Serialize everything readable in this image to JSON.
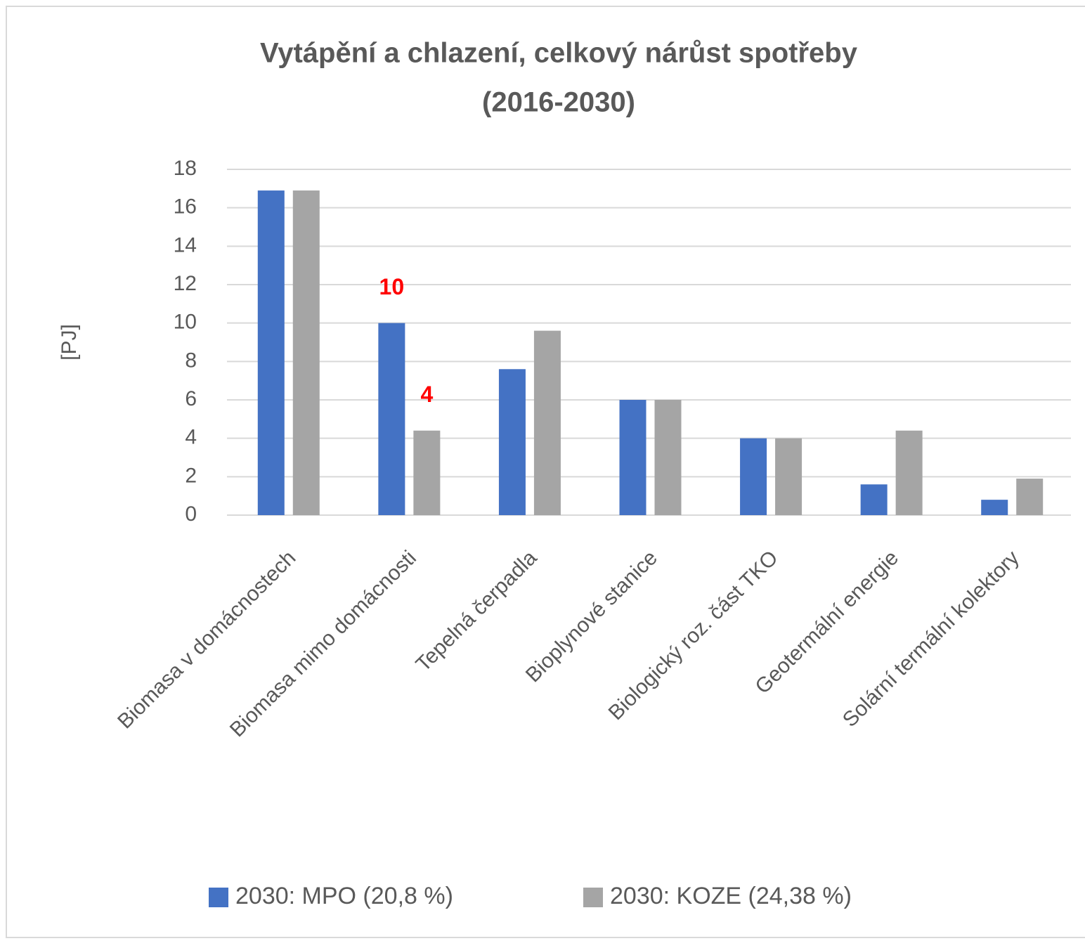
{
  "chart_data": {
    "type": "bar",
    "title": "Vytápění a chlazení, celkový nárůst spotřeby",
    "subtitle": "(2016-2030)",
    "y_label": "[PJ]",
    "categories": [
      "Biomasa v domácnostech",
      "Biomasa mimo domácnosti",
      "Tepelná čerpadla",
      "Bioplynové stanice",
      "Biologický roz. část TKO",
      "Geotermální energie",
      "Solární termální kolektory"
    ],
    "series": [
      {
        "name": "2030: MPO (20,8 %)",
        "color": "#4472c4",
        "values": [
          16.9,
          10,
          7.6,
          6,
          4,
          1.6,
          0.8
        ],
        "value_labels": [
          null,
          "10",
          null,
          null,
          null,
          null,
          null
        ]
      },
      {
        "name": "2030: KOZE (24,38 %)",
        "color": "#a5a5a5",
        "values": [
          16.9,
          4.4,
          9.6,
          6,
          4,
          4.4,
          1.9
        ],
        "value_labels": [
          null,
          "4",
          null,
          null,
          null,
          null,
          null
        ]
      }
    ],
    "value_label_color": "#ff0000",
    "ylim": [
      0,
      18
    ],
    "yticks": [
      0,
      2,
      4,
      6,
      8,
      10,
      12,
      14,
      16,
      18
    ],
    "grid": true,
    "legend": "bottom"
  }
}
